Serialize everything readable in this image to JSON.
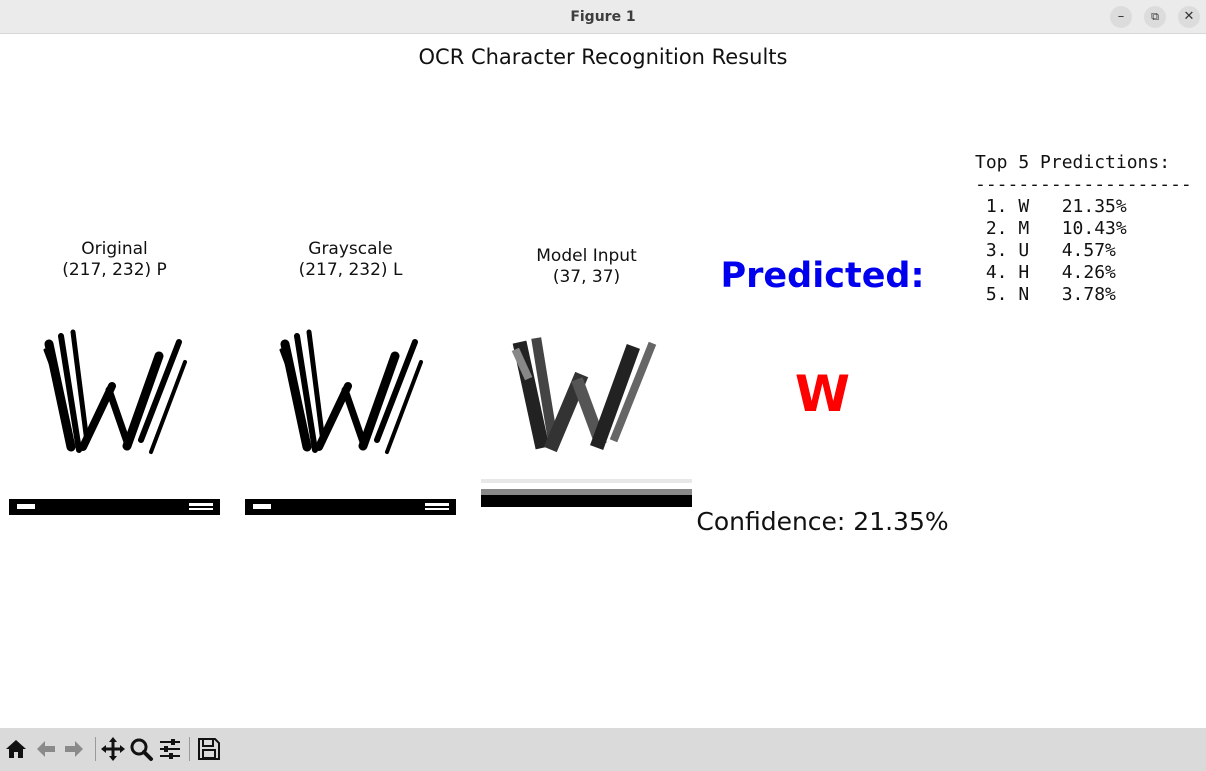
{
  "window": {
    "title": "Figure 1",
    "minimize_icon": "minimize-icon",
    "maximize_icon": "maximize-icon",
    "close_icon": "close-icon"
  },
  "figure": {
    "title": "OCR Character Recognition Results",
    "panels": [
      {
        "title": "Original\n(217, 232) P",
        "image": "original-w-image"
      },
      {
        "title": "Grayscale\n(217, 232) L",
        "image": "grayscale-w-image"
      },
      {
        "title": "Model Input\n(37, 37)",
        "image": "model-input-w-image"
      }
    ],
    "predicted_label": "Predicted:",
    "predicted_char": "W",
    "confidence": "Confidence: 21.35%",
    "top5": {
      "header": "Top 5 Predictions:",
      "divider": "--------------------",
      "rows": [
        " 1. W   21.35%",
        " 2. M   10.43%",
        " 3. U   4.57%",
        " 4. H   4.26%",
        " 5. N   3.78%"
      ]
    },
    "colors": {
      "predicted_label": "#0000ee",
      "predicted_char": "#ff0000"
    }
  },
  "toolbar": {
    "buttons": [
      "home-icon",
      "back-icon",
      "forward-icon",
      "pan-icon",
      "zoom-icon",
      "configure-icon",
      "save-icon"
    ]
  }
}
